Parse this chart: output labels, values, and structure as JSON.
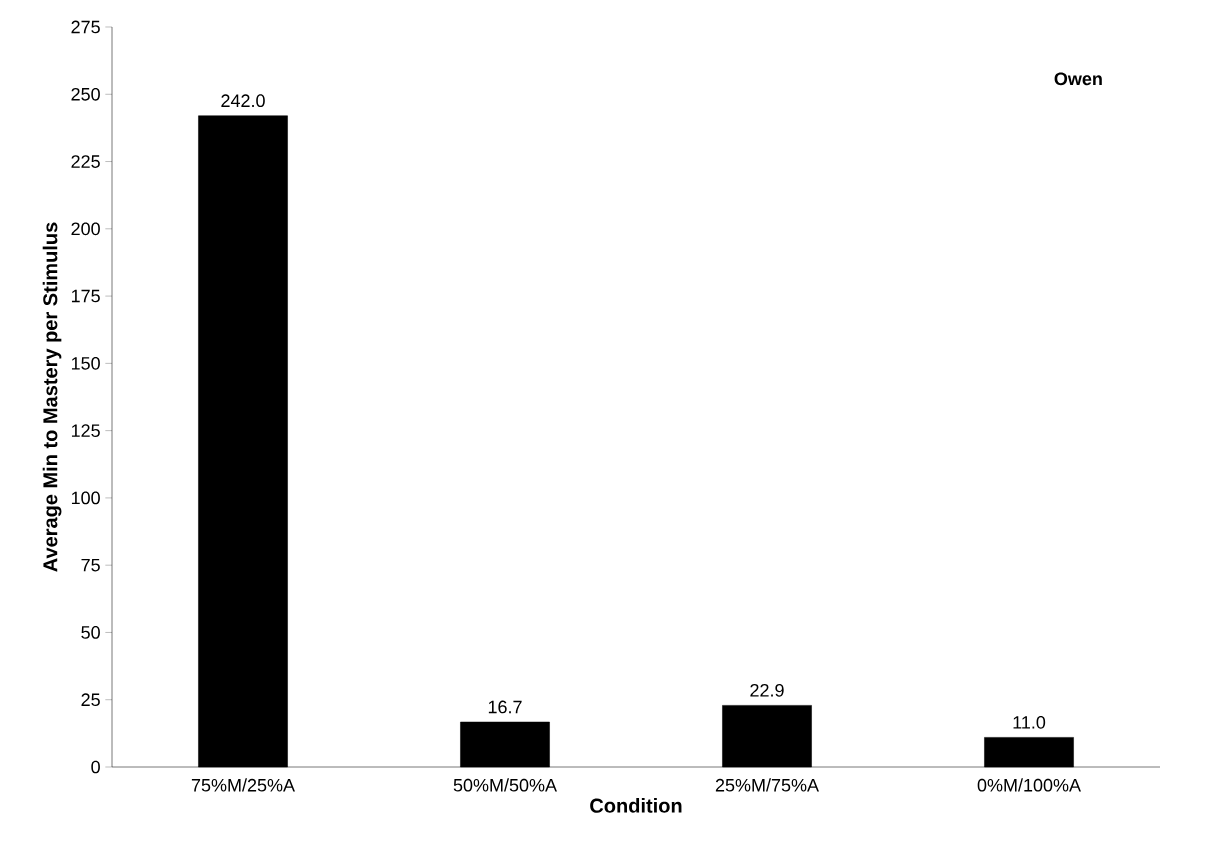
{
  "chart_data": {
    "type": "bar",
    "xlabel": "Condition",
    "ylabel": "Average Min to Mastery per Stimulus",
    "categories": [
      "75%M/25%A",
      "50%M/50%A",
      "25%M/75%A",
      "0%M/100%A"
    ],
    "values": [
      242.0,
      16.7,
      22.9,
      11.0
    ],
    "value_labels": [
      "242.0",
      "16.7",
      "22.9",
      "11.0"
    ],
    "color": "#000000",
    "ylim": [
      0,
      275
    ],
    "yticks": [
      0,
      25,
      50,
      75,
      100,
      125,
      150,
      175,
      200,
      225,
      250,
      275
    ],
    "grid": false,
    "annotations": [
      "Owen"
    ]
  }
}
